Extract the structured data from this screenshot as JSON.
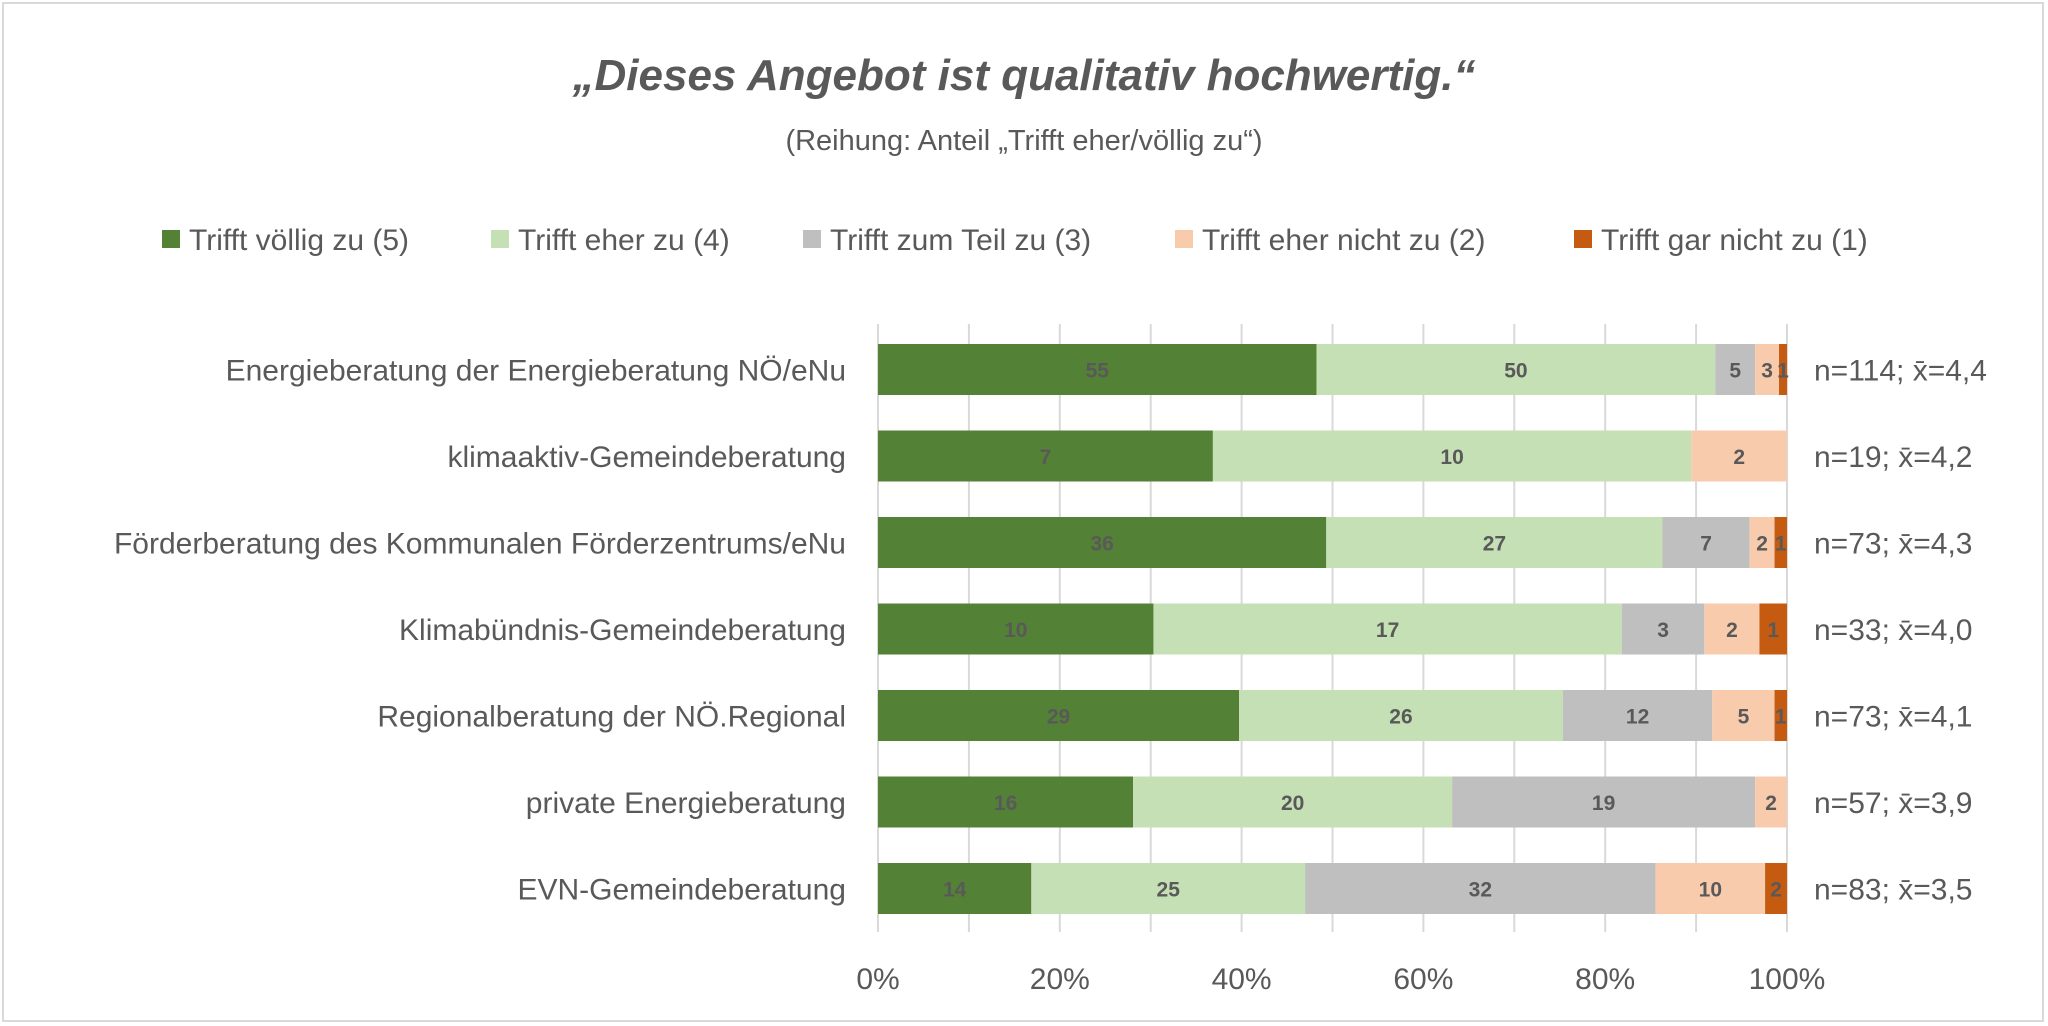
{
  "chart_data": {
    "type": "bar",
    "orientation": "horizontal",
    "stacked": "percent",
    "title": "„Dieses Angebot ist qualitativ hochwertig.“",
    "subtitle": "(Reihung: Anteil „Trifft eher/völlig zu“)",
    "legend_position": "top",
    "grid": "vertical",
    "xlim": [
      0,
      100
    ],
    "x_ticks": [
      "0%",
      "20%",
      "40%",
      "60%",
      "80%",
      "100%"
    ],
    "categories": [
      "Energieberatung der Energieberatung NÖ/eNu",
      "klimaaktiv-Gemeindeberatung",
      "Förderberatung des Kommunalen Förderzentrums/eNu",
      "Klimabündnis-Gemeindeberatung",
      "Regionalberatung der NÖ.Regional",
      "private Energieberatung",
      "EVN-Gemeindeberatung"
    ],
    "stats": [
      "n=114; x̄=4,4",
      "n=19; x̄=4,2",
      "n=73; x̄=4,3",
      "n=33; x̄=4,0",
      "n=73; x̄=4,1",
      "n=57; x̄=3,9",
      "n=83; x̄=3,5"
    ],
    "series": [
      {
        "name": "Trifft völlig zu (5)",
        "color": "#538135",
        "values": [
          55,
          7,
          36,
          10,
          29,
          16,
          14
        ]
      },
      {
        "name": "Trifft eher zu (4)",
        "color": "#c5e0b4",
        "values": [
          50,
          10,
          27,
          17,
          26,
          20,
          25
        ]
      },
      {
        "name": "Trifft zum Teil zu (3)",
        "color": "#bfbfbf",
        "values": [
          5,
          0,
          7,
          3,
          12,
          19,
          32
        ]
      },
      {
        "name": "Trifft eher nicht zu (2)",
        "color": "#f8cbad",
        "values": [
          3,
          2,
          2,
          2,
          5,
          2,
          10
        ]
      },
      {
        "name": "Trifft gar nicht zu (1)",
        "color": "#c55a11",
        "values": [
          1,
          0,
          1,
          1,
          1,
          0,
          2
        ]
      }
    ]
  }
}
